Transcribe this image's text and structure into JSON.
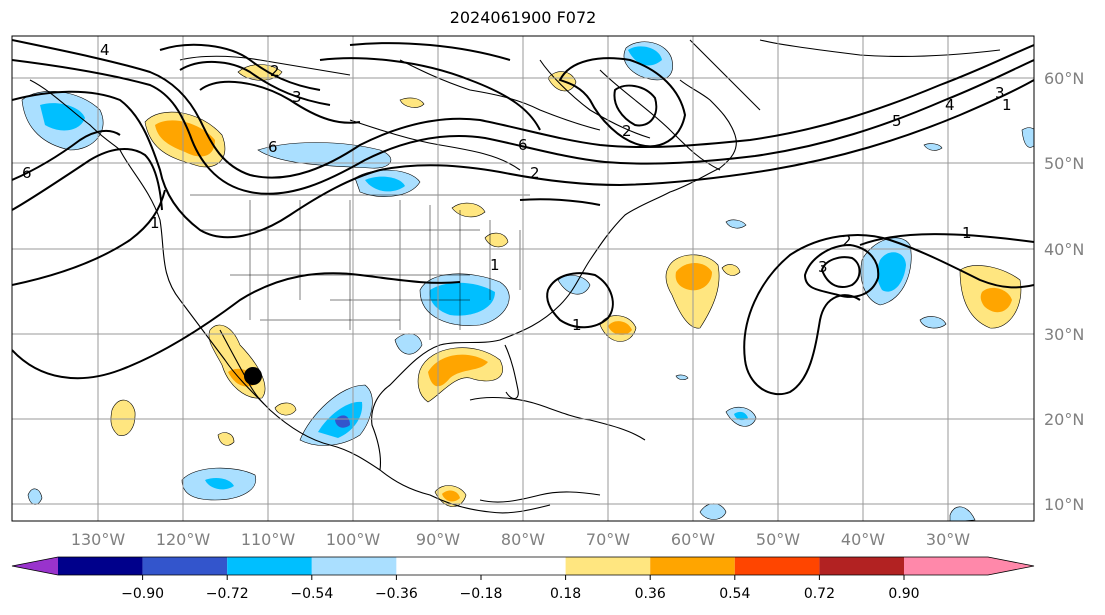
{
  "title": "2024061900 F072",
  "longitude_labels": [
    "130°W",
    "120°W",
    "110°W",
    "100°W",
    "90°W",
    "80°W",
    "70°W",
    "60°W",
    "50°W",
    "40°W",
    "30°W"
  ],
  "latitude_labels": [
    "60°N",
    "50°N",
    "40°N",
    "30°N",
    "20°N",
    "10°N"
  ],
  "colorbar": {
    "ticks": [
      "−0.90",
      "−0.72",
      "−0.54",
      "−0.36",
      "−0.18",
      "0.18",
      "0.36",
      "0.54",
      "0.72",
      "0.90"
    ],
    "colors": [
      "#9933cc",
      "#00008b",
      "#3355cc",
      "#00bfff",
      "#aadfff",
      "#ffffff",
      "#ffe680",
      "#ffa500",
      "#ff4500",
      "#b22222",
      "#ff88aa"
    ]
  },
  "contour_labels": [
    "4",
    "2",
    "3",
    "6",
    "6",
    "2",
    "1",
    "6",
    "2",
    "5",
    "4",
    "3",
    "1",
    "2",
    "3",
    "1",
    "1",
    "1"
  ],
  "marker": "storm-center-dot"
}
